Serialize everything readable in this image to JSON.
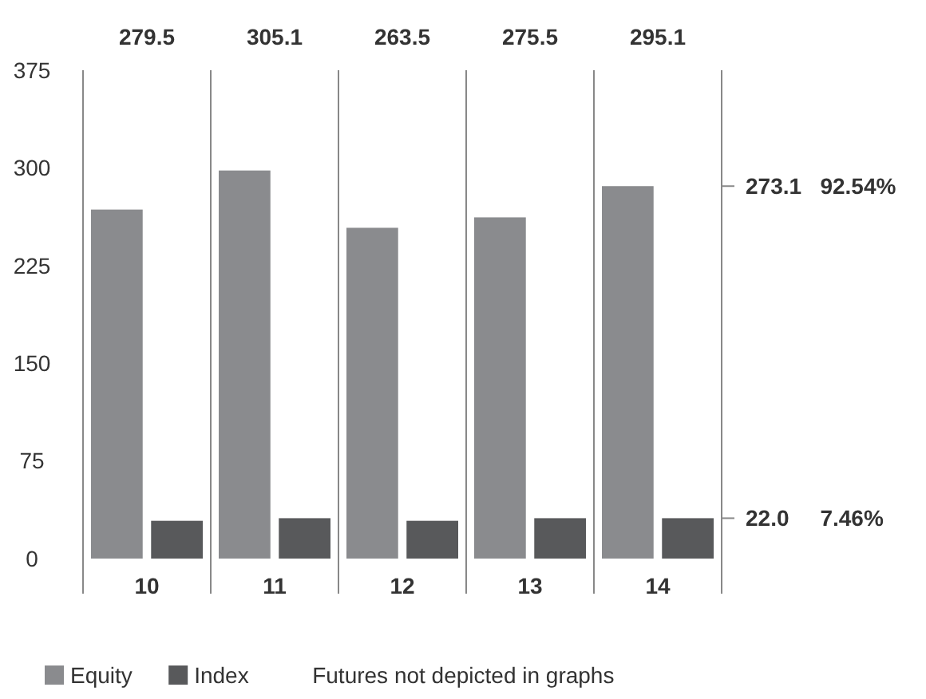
{
  "chart_data": {
    "type": "bar",
    "categories": [
      "10",
      "11",
      "12",
      "13",
      "14"
    ],
    "series": [
      {
        "name": "Equity",
        "color": "#8a8b8e",
        "values": [
          268,
          298,
          254,
          262,
          286
        ]
      },
      {
        "name": "Index",
        "color": "#58595b",
        "values": [
          29,
          31,
          29,
          31,
          31
        ]
      }
    ],
    "ylim": [
      0,
      375
    ],
    "yticks": [
      0,
      75,
      150,
      225,
      300,
      375
    ],
    "annotations": [
      "279.5",
      "305.1",
      "263.5",
      "275.5",
      "295.1",
      "273.1   92.54%",
      "22.0     7.46%",
      "Futures not depicted in graphs"
    ],
    "legend": "bottom"
  }
}
